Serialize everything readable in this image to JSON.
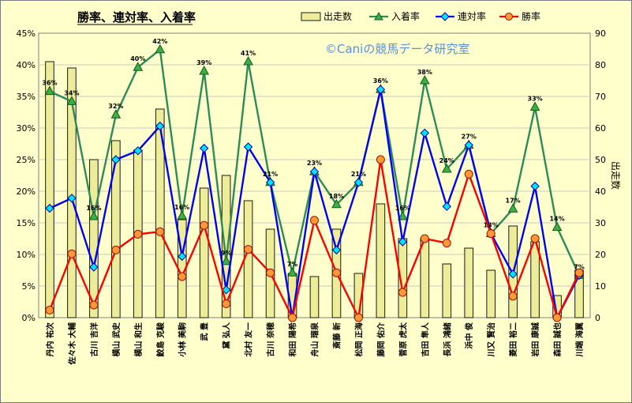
{
  "chart_data": {
    "type": "bar",
    "title": "勝率、連対率、入着率",
    "watermark": "©Caniの競馬データ研究室",
    "ylabel_right": "出走数",
    "y_left_range": [
      0,
      45
    ],
    "y_left_ticks": [
      "0%",
      "5%",
      "10%",
      "15%",
      "20%",
      "25%",
      "30%",
      "35%",
      "40%",
      "45%"
    ],
    "y_right_range": [
      0,
      90
    ],
    "y_right_ticks": [
      "0",
      "10",
      "20",
      "30",
      "40",
      "50",
      "60",
      "70",
      "80",
      "90"
    ],
    "grid": true,
    "legend_position": "top-right",
    "categories": [
      "丹内 祐次",
      "佐々木 大輔",
      "古川 吉洋",
      "横山 武史",
      "横山 和生",
      "鮫島 克駿",
      "小林 美駒",
      "武 豊",
      "黛 弘人",
      "北村 友一",
      "古川 奈穂",
      "和田 陽希",
      "舟山 瑠泉",
      "斎藤 新",
      "松岡 正海",
      "藤岡 佑介",
      "菅原 虎太",
      "吉田 隼人",
      "長浜 鴻緒",
      "浜中 俊",
      "川又 賢治",
      "菱田 裕二",
      "岩田 康誠",
      "森田 誠也",
      "川端 海翼"
    ],
    "series": [
      {
        "name": "出走数",
        "kind": "bar",
        "axis": "right",
        "color": "#ecec9a",
        "values": [
          81,
          79,
          50,
          56,
          53,
          66,
          31,
          41,
          45,
          37,
          28,
          14,
          13,
          28,
          14,
          36,
          25,
          25,
          17,
          22,
          15,
          29,
          24,
          7,
          15
        ]
      },
      {
        "name": "入着率",
        "kind": "line",
        "axis": "left",
        "color": "#2e8b57",
        "marker": "triangle",
        "values": [
          35.8,
          34.2,
          16.0,
          32.1,
          39.6,
          42.4,
          16.1,
          39.0,
          8.9,
          40.5,
          21.4,
          7.1,
          23.1,
          17.9,
          21.4,
          36.1,
          16.0,
          37.5,
          23.5,
          27.3,
          13.3,
          17.2,
          33.3,
          14.3,
          6.7
        ]
      },
      {
        "name": "連対率",
        "kind": "line",
        "axis": "left",
        "color": "#0000ff",
        "marker": "diamond",
        "values": [
          17.3,
          18.9,
          8.0,
          25.0,
          26.4,
          30.3,
          9.7,
          26.8,
          4.4,
          27.0,
          21.4,
          0,
          23.1,
          10.7,
          21.4,
          36.1,
          12.0,
          29.2,
          17.6,
          27.3,
          13.3,
          6.9,
          20.8,
          0,
          6.7
        ]
      },
      {
        "name": "勝率",
        "kind": "line",
        "axis": "left",
        "color": "#ff0000",
        "marker": "circle",
        "values": [
          1.2,
          10.1,
          2.0,
          10.7,
          13.2,
          13.6,
          6.5,
          14.6,
          2.2,
          10.8,
          7.1,
          0,
          15.4,
          7.1,
          0,
          25.0,
          4.0,
          12.5,
          11.8,
          22.7,
          13.3,
          3.4,
          12.5,
          0,
          7.1
        ]
      }
    ],
    "data_labels_series": "入着率",
    "data_labels": [
      "36%",
      "34%",
      "16%",
      "32%",
      "40%",
      "42%",
      "16%",
      "39%",
      "9%",
      "41%",
      "21%",
      "7%",
      "23%",
      "18%",
      "21%",
      "36%",
      "16%",
      "38%",
      "24%",
      "27%",
      "13%",
      "17%",
      "33%",
      "14%",
      "7%"
    ]
  }
}
